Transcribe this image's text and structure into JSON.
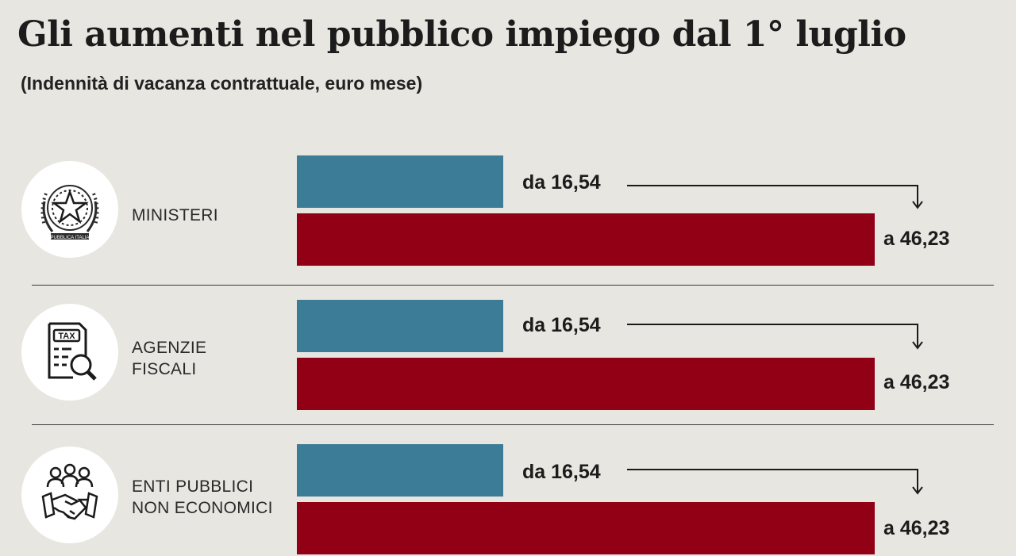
{
  "title": "Gli aumenti nel pubblico impiego dal 1° luglio",
  "subtitle": "(Indennità di vacanza contrattuale, euro mese)",
  "colors": {
    "old": "#3d7c96",
    "new": "#920016",
    "background": "#e8e6e0"
  },
  "categories": [
    {
      "label_lines": [
        "MINISTERI"
      ],
      "icon": "italian-emblem-icon",
      "old_label": "da 16,54",
      "new_label": "a 46,23"
    },
    {
      "label_lines": [
        "AGENZIE",
        "FISCALI"
      ],
      "icon": "tax-document-magnifier-icon",
      "old_label": "da 16,54",
      "new_label": "a 46,23"
    },
    {
      "label_lines": [
        "ENTI PUBBLICI",
        "NON ECONOMICI"
      ],
      "icon": "people-handshake-icon",
      "old_label": "da 16,54",
      "new_label": "a 46,23"
    }
  ],
  "chart_data": {
    "type": "bar",
    "orientation": "horizontal",
    "categories": [
      "MINISTERI",
      "AGENZIE FISCALI",
      "ENTI PUBBLICI NON ECONOMICI"
    ],
    "series": [
      {
        "values": [
          16.54,
          16.54,
          16.54
        ]
      },
      {
        "values": [
          46.23,
          46.23,
          46.23
        ]
      }
    ],
    "title": "Gli aumenti nel pubblico impiego dal 1° luglio",
    "subtitle": "(Indennità di vacanza contrattuale, euro mese)",
    "xlim": [
      0,
      46.23
    ],
    "grid": false
  }
}
